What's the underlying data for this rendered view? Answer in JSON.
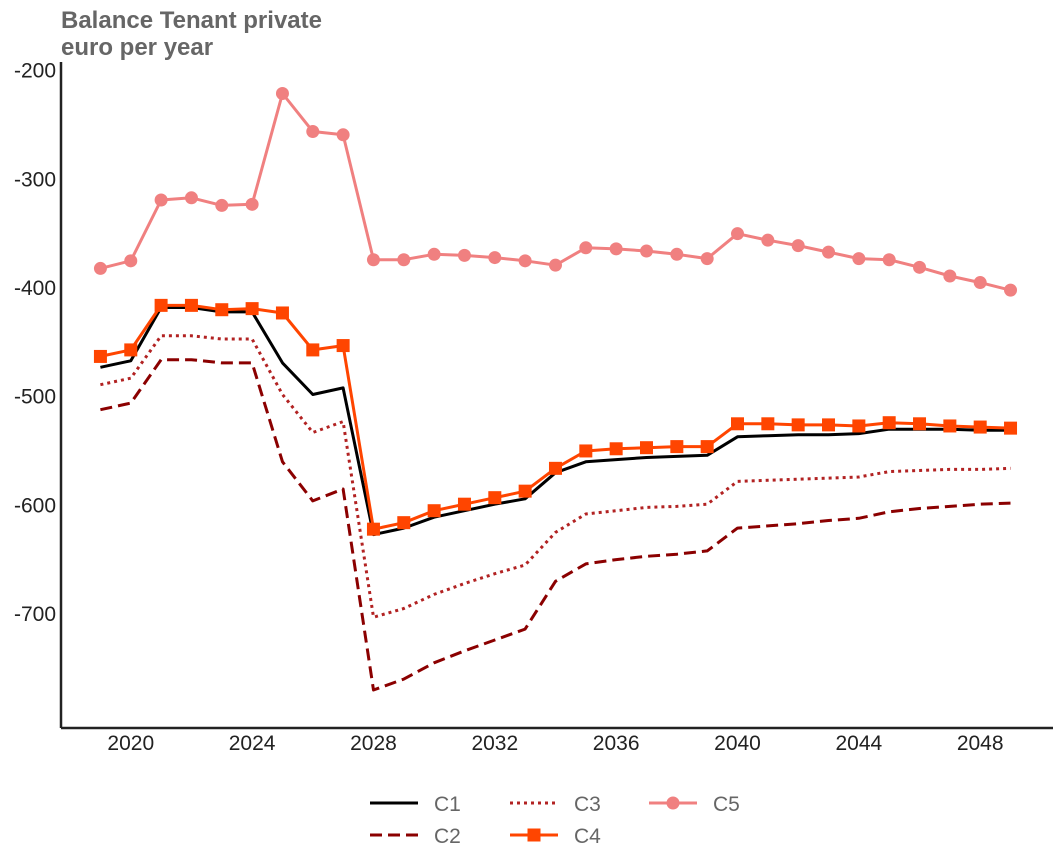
{
  "chart_data": {
    "type": "line",
    "title": "Balance Tenant private",
    "subtitle": "euro per year",
    "xlabel": "",
    "ylabel": "",
    "xlim": [
      2017.7,
      2050.4
    ],
    "ylim": [
      -805,
      -192
    ],
    "x_ticks": [
      "2020",
      "2024",
      "2028",
      "2032",
      "2036",
      "2040",
      "2044",
      "2048"
    ],
    "y_ticks": [
      "-200",
      "-300",
      "-400",
      "-500",
      "-600",
      "-700"
    ],
    "grid": false,
    "legend_placement": "bottom-center",
    "x": [
      2019,
      2020,
      2021,
      2022,
      2023,
      2024,
      2025,
      2026,
      2027,
      2028,
      2029,
      2030,
      2031,
      2032,
      2033,
      2034,
      2035,
      2036,
      2037,
      2038,
      2039,
      2040,
      2041,
      2042,
      2043,
      2044,
      2045,
      2046,
      2047,
      2048,
      2049
    ],
    "series": [
      {
        "name": "C1",
        "color": "#000000",
        "style": "solid",
        "marker": "none",
        "values": [
          -473,
          -467,
          -418,
          -418,
          -422,
          -422,
          -469,
          -498,
          -492,
          -627,
          -621,
          -611,
          -605,
          -599,
          -594,
          -570,
          -560,
          -558,
          -556,
          -555,
          -554,
          -537,
          -536,
          -535,
          -535,
          -534,
          -530,
          -530,
          -530,
          -531,
          -531
        ]
      },
      {
        "name": "C2",
        "color": "#8b0000",
        "style": "dashed",
        "marker": "none",
        "values": [
          -512,
          -506,
          -466,
          -466,
          -469,
          -469,
          -560,
          -596,
          -585,
          -770,
          -760,
          -745,
          -734,
          -724,
          -714,
          -670,
          -654,
          -650,
          -647,
          -645,
          -642,
          -621,
          -619,
          -617,
          -614,
          -612,
          -606,
          -603,
          -601,
          -599,
          -598
        ]
      },
      {
        "name": "C3",
        "color": "#b22222",
        "style": "dotted",
        "marker": "none",
        "values": [
          -489,
          -483,
          -444,
          -444,
          -447,
          -447,
          -498,
          -533,
          -523,
          -703,
          -695,
          -682,
          -672,
          -663,
          -655,
          -625,
          -608,
          -605,
          -602,
          -601,
          -599,
          -578,
          -577,
          -576,
          -575,
          -574,
          -569,
          -568,
          -567,
          -567,
          -566
        ]
      },
      {
        "name": "C4",
        "color": "#ff4500",
        "style": "solid",
        "marker": "square",
        "values": [
          -463,
          -457,
          -416,
          -416,
          -420,
          -419,
          -423,
          -457,
          -453,
          -622,
          -616,
          -605,
          -599,
          -593,
          -587,
          -566,
          -550,
          -548,
          -547,
          -546,
          -546,
          -525,
          -525,
          -526,
          -526,
          -527,
          -524,
          -525,
          -527,
          -528,
          -529
        ]
      },
      {
        "name": "C5",
        "color": "#f08080",
        "style": "solid",
        "marker": "circle",
        "values": [
          -382,
          -375,
          -319,
          -317,
          -324,
          -323,
          -221,
          -256,
          -259,
          -374,
          -374,
          -369,
          -370,
          -372,
          -375,
          -379,
          -363,
          -364,
          -366,
          -369,
          -373,
          -350,
          -356,
          -361,
          -367,
          -373,
          -374,
          -381,
          -389,
          -395,
          -402
        ]
      }
    ]
  }
}
